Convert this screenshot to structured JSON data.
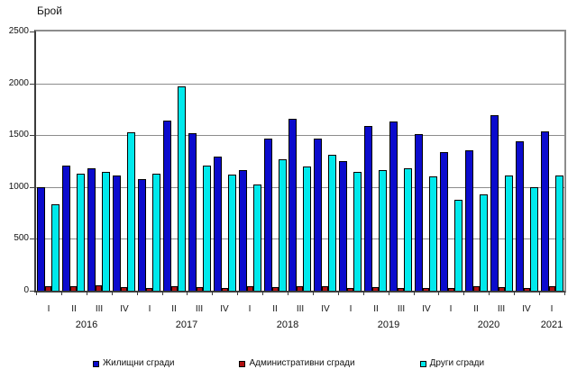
{
  "chart_data": {
    "type": "bar",
    "title": "Брой",
    "xlabel": "",
    "ylabel": "Брой",
    "ylim": [
      0,
      2500
    ],
    "yticks": [
      0,
      500,
      1000,
      1500,
      2000,
      2500
    ],
    "grid": true,
    "legend_position": "bottom",
    "categories": [
      "I",
      "II",
      "III",
      "IV",
      "I",
      "II",
      "III",
      "IV",
      "I",
      "II",
      "III",
      "IV",
      "I",
      "II",
      "III",
      "IV",
      "I",
      "II",
      "III",
      "IV",
      "I"
    ],
    "years": [
      {
        "label": "2016",
        "start": 0,
        "end": 3
      },
      {
        "label": "2017",
        "start": 4,
        "end": 7
      },
      {
        "label": "2018",
        "start": 8,
        "end": 11
      },
      {
        "label": "2019",
        "start": 12,
        "end": 15
      },
      {
        "label": "2020",
        "start": 16,
        "end": 19
      },
      {
        "label": "2021",
        "start": 20,
        "end": 20
      }
    ],
    "series": [
      {
        "key": "residential",
        "name": "Жилищни сгради",
        "color": "#0b0bcd",
        "values": [
          1000,
          1210,
          1180,
          1110,
          1080,
          1640,
          1520,
          1290,
          1160,
          1470,
          1660,
          1470,
          1250,
          1590,
          1630,
          1510,
          1340,
          1350,
          1690,
          1440,
          1540
        ]
      },
      {
        "key": "administrative",
        "name": "Административни сгради",
        "color": "#b01010",
        "values": [
          45,
          40,
          55,
          35,
          30,
          45,
          35,
          30,
          40,
          35,
          45,
          40,
          30,
          35,
          30,
          30,
          25,
          45,
          35,
          25,
          40
        ]
      },
      {
        "key": "other",
        "name": "Други сгради",
        "color": "#00e9ec",
        "values": [
          830,
          1130,
          1150,
          1530,
          1130,
          1970,
          1210,
          1120,
          1020,
          1270,
          1200,
          1310,
          1150,
          1160,
          1180,
          1100,
          880,
          930,
          1110,
          1000,
          1110
        ]
      }
    ]
  },
  "layout_labels": {
    "quarter_row_note": "quarter tick labels rendered from chart_data.categories",
    "year_row_note": "year labels rendered from chart_data.years"
  }
}
